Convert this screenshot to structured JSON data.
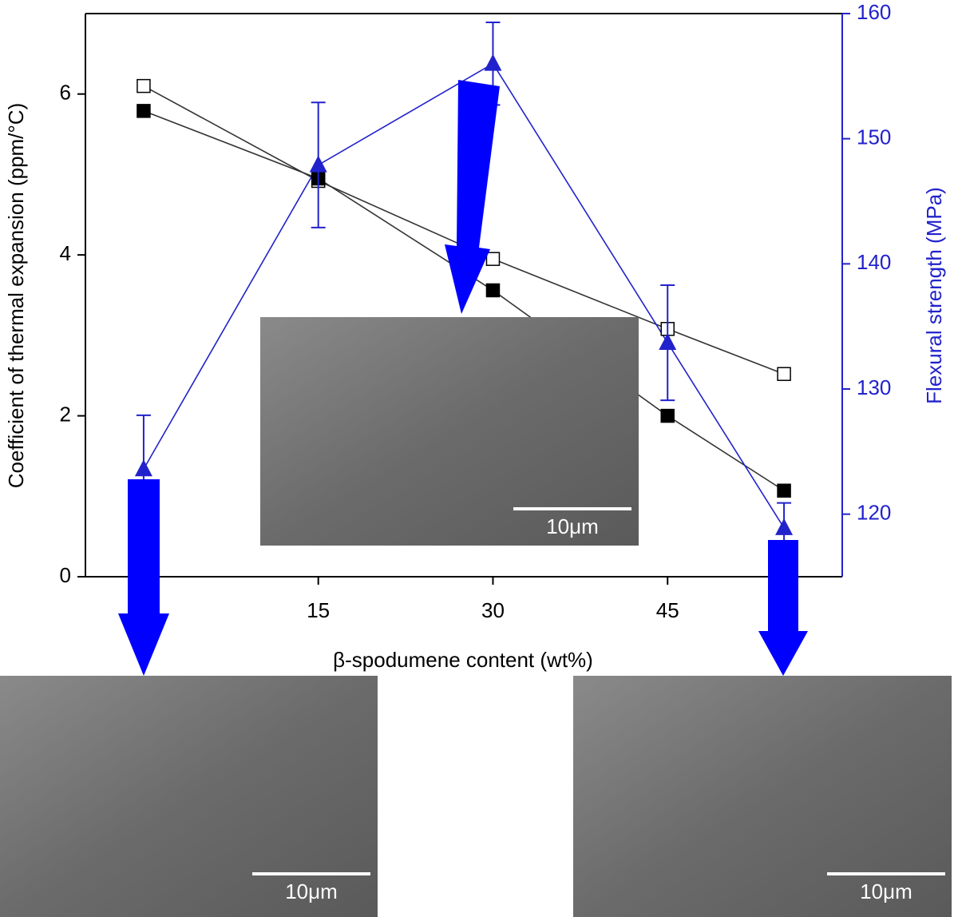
{
  "chart_data": {
    "type": "line",
    "x_label": "β-spodumene content (wt%)",
    "y_label": "Coefficient of thermal expansion (ppm/°C)",
    "y2_label": "Flexural strength (MPa)",
    "x": [
      0,
      15,
      30,
      45,
      55
    ],
    "xlim": [
      -5,
      60
    ],
    "xticks": [
      15,
      30,
      45
    ],
    "ylim": [
      0,
      7
    ],
    "yticks": [
      0,
      2,
      4,
      6
    ],
    "y2lim": [
      115,
      160
    ],
    "y2ticks": [
      120,
      130,
      140,
      150,
      160
    ],
    "series": [
      {
        "color": "#333333",
        "marker": "open-square",
        "values": [
          6.1,
          4.92,
          3.95,
          3.08,
          2.52
        ]
      },
      {
        "color": "#333333",
        "marker": "filled-square",
        "values": [
          5.79,
          4.95,
          3.56,
          2.0,
          1.07
        ]
      },
      {
        "color": "#2222cc",
        "marker": "triangle",
        "axis": "y2",
        "values": [
          123.6,
          147.9,
          156.0,
          133.7,
          118.9
        ],
        "errors": [
          4.3,
          5.0,
          3.3,
          4.6,
          2.0
        ]
      }
    ],
    "annotations": [
      "10μm",
      "10μm",
      "10μm"
    ]
  }
}
